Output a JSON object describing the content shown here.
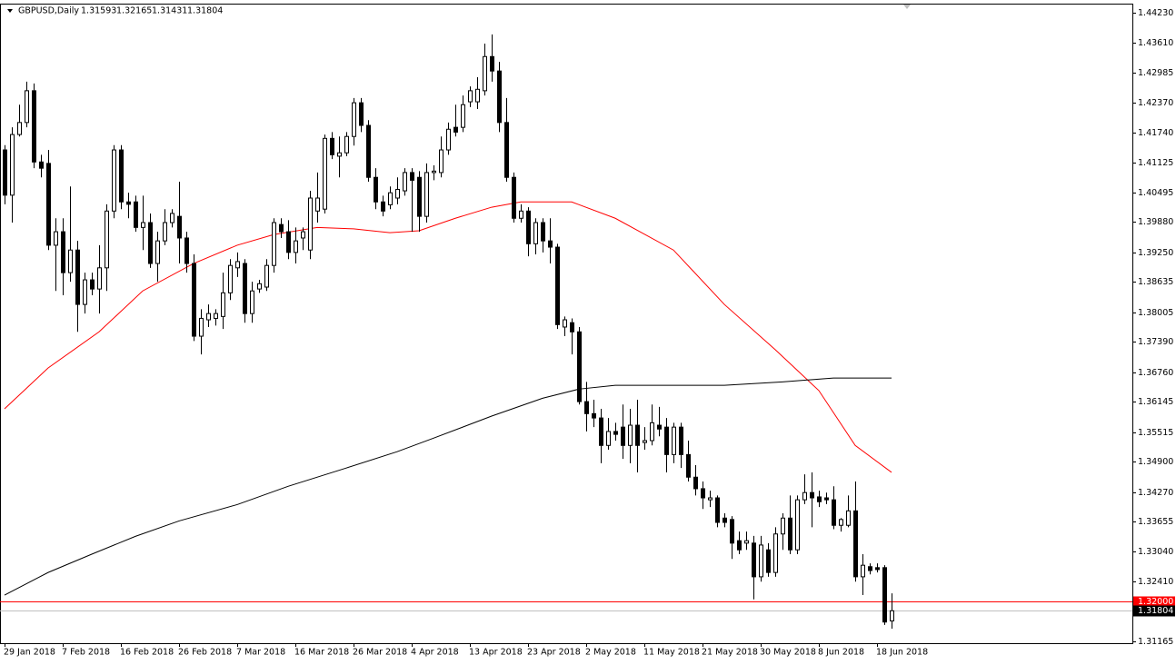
{
  "chart_data": {
    "type": "candlestick",
    "title": "GBPUSD,Daily",
    "quote": [
      1.31593,
      1.32165,
      1.31431,
      1.31804
    ],
    "categories": [
      "29 Jan 2018",
      null,
      null,
      null,
      null,
      null,
      null,
      null,
      "7 Feb 2018",
      null,
      null,
      null,
      null,
      null,
      null,
      null,
      "16 Feb 2018",
      null,
      null,
      null,
      null,
      null,
      null,
      null,
      "26 Feb 2018",
      null,
      null,
      null,
      null,
      null,
      null,
      null,
      "7 Mar 2018",
      null,
      null,
      null,
      null,
      null,
      null,
      null,
      "16 Mar 2018",
      null,
      null,
      null,
      null,
      null,
      null,
      null,
      "26 Mar 2018",
      null,
      null,
      null,
      null,
      null,
      null,
      null,
      "4 Apr 2018",
      null,
      null,
      null,
      null,
      null,
      null,
      null,
      "13 Apr 2018",
      null,
      null,
      null,
      null,
      null,
      null,
      null,
      "23 Apr 2018",
      null,
      null,
      null,
      null,
      null,
      null,
      null,
      "2 May 2018",
      null,
      null,
      null,
      null,
      null,
      null,
      null,
      "11 May 2018",
      null,
      null,
      null,
      null,
      null,
      null,
      null,
      "21 May 2018",
      null,
      null,
      null,
      null,
      null,
      null,
      null,
      "30 May 2018",
      null,
      null,
      null,
      null,
      null,
      null,
      null,
      "8 Jun 2018",
      null,
      null,
      null,
      null,
      null,
      null,
      null,
      "18 Jun 2018",
      null,
      null
    ],
    "open": [
      1.4138,
      1.4044,
      1.417,
      1.4195,
      1.4261,
      1.4113,
      1.411,
      1.394,
      1.3968,
      1.3883,
      1.393,
      1.3817,
      1.3868,
      1.3849,
      1.3893,
      1.4011,
      1.4138,
      1.403,
      1.403,
      1.3977,
      1.3987,
      1.3902,
      1.3949,
      1.3987,
      1.4,
      1.3955,
      1.3902,
      1.3751,
      1.3785,
      1.3788,
      1.3792,
      1.3841,
      1.3893,
      1.3902,
      1.3798,
      1.3849,
      1.3853,
      1.3898,
      1.3983,
      1.3968,
      1.3925,
      1.3955,
      1.393,
      1.4011,
      1.4015,
      1.4162,
      1.4125,
      1.4132,
      1.4166,
      1.4236,
      1.4189,
      1.4081,
      1.403,
      1.4024,
      1.4038,
      1.4053,
      1.4091,
      1.4081,
      1.4,
      1.4091,
      1.4091,
      1.4138,
      1.4185,
      1.4185,
      1.4238,
      1.4238,
      1.4261,
      1.4332,
      1.4302,
      1.4195,
      1.4081,
      1.3996,
      1.4011,
      1.3943,
      1.3987,
      1.3949,
      1.3936,
      1.377,
      1.3779,
      1.376,
      1.3615,
      1.359,
      1.3581,
      1.3524,
      1.3553,
      1.3562,
      1.3524,
      1.3566,
      1.353,
      1.3534,
      1.3566,
      1.3562,
      1.3505,
      1.3562,
      1.3505,
      1.3458,
      1.3434,
      1.3411,
      1.3415,
      1.3373,
      1.337,
      1.3326,
      1.3321,
      1.3321,
      1.3251,
      1.3307,
      1.326,
      1.334,
      1.3373,
      1.3307,
      1.3411,
      1.3426,
      1.3417,
      1.3415,
      1.3411,
      1.3358,
      1.3358,
      1.3388,
      1.3251,
      1.3272,
      1.327,
      1.327,
      1.31593
    ],
    "high": [
      1.4148,
      1.4185,
      1.4232,
      1.428,
      1.4276,
      1.4128,
      1.4138,
      1.3996,
      1.3996,
      1.4062,
      1.3949,
      1.3883,
      1.3883,
      1.394,
      1.4025,
      1.4148,
      1.4148,
      1.4049,
      1.4043,
      1.4043,
      1.4006,
      1.3968,
      1.4015,
      1.4015,
      1.4072,
      1.3968,
      1.3921,
      1.3807,
      1.3817,
      1.3807,
      1.3883,
      1.3911,
      1.3925,
      1.3911,
      1.3864,
      1.3868,
      1.3911,
      1.3996,
      1.3996,
      1.3992,
      1.3977,
      1.3977,
      1.4053,
      1.4091,
      1.417,
      1.4175,
      1.4166,
      1.4175,
      1.4246,
      1.4246,
      1.42,
      1.41,
      1.4043,
      1.4062,
      1.4081,
      1.41,
      1.41,
      1.4094,
      1.411,
      1.4106,
      1.4166,
      1.4195,
      1.4232,
      1.4251,
      1.427,
      1.4289,
      1.4359,
      1.4378,
      1.4321,
      1.4246,
      1.4091,
      1.4025,
      1.4019,
      1.3996,
      1.3996,
      1.3996,
      1.3943,
      1.3792,
      1.3788,
      1.377,
      1.3656,
      1.3619,
      1.36,
      1.3581,
      1.3571,
      1.3609,
      1.36,
      1.3619,
      1.3562,
      1.3609,
      1.3604,
      1.3581,
      1.3571,
      1.3571,
      1.3534,
      1.3483,
      1.3449,
      1.343,
      1.342,
      1.3383,
      1.3377,
      1.3345,
      1.3345,
      1.3336,
      1.3336,
      1.3321,
      1.3354,
      1.3383,
      1.342,
      1.342,
      1.3464,
      1.3468,
      1.343,
      1.3426,
      1.3439,
      1.3373,
      1.342,
      1.3449,
      1.3298,
      1.3279,
      1.3279,
      1.3275,
      1.32165
    ],
    "low": [
      1.4025,
      1.3987,
      1.4166,
      1.4185,
      1.41,
      1.4081,
      1.393,
      1.3845,
      1.3836,
      1.3864,
      1.376,
      1.3798,
      1.3836,
      1.3798,
      1.3845,
      1.3996,
      1.4015,
      1.3996,
      1.3968,
      1.393,
      1.3893,
      1.3864,
      1.394,
      1.3977,
      1.3902,
      1.3883,
      1.3741,
      1.3713,
      1.377,
      1.3773,
      1.3766,
      1.3826,
      1.3874,
      1.3779,
      1.3779,
      1.3841,
      1.3845,
      1.3883,
      1.3955,
      1.3911,
      1.3902,
      1.393,
      1.3911,
      1.3987,
      1.4006,
      1.4119,
      1.4081,
      1.4125,
      1.4147,
      1.4175,
      1.4072,
      1.4015,
      1.4,
      1.4015,
      1.4025,
      1.4043,
      1.3968,
      1.3968,
      1.3987,
      1.4075,
      1.4081,
      1.4128,
      1.4166,
      1.4175,
      1.4227,
      1.4223,
      1.4251,
      1.428,
      1.4175,
      1.4072,
      1.3987,
      1.3987,
      1.3917,
      1.3921,
      1.3925,
      1.3902,
      1.3766,
      1.3751,
      1.3713,
      1.3609,
      1.3553,
      1.3562,
      1.3487,
      1.3515,
      1.3534,
      1.3496,
      1.3487,
      1.3468,
      1.3515,
      1.3524,
      1.3543,
      1.3468,
      1.3487,
      1.3477,
      1.3449,
      1.342,
      1.3392,
      1.3396,
      1.3354,
      1.3354,
      1.3288,
      1.3298,
      1.3307,
      1.3204,
      1.3241,
      1.3251,
      1.3251,
      1.3307,
      1.3298,
      1.3298,
      1.3402,
      1.3354,
      1.3396,
      1.3402,
      1.335,
      1.3345,
      1.3354,
      1.3241,
      1.3213,
      1.3256,
      1.326,
      1.3151,
      1.31431
    ],
    "close": [
      1.4044,
      1.417,
      1.4195,
      1.4261,
      1.4113,
      1.41,
      1.394,
      1.3968,
      1.3883,
      1.393,
      1.3817,
      1.3868,
      1.3849,
      1.3893,
      1.4011,
      1.4138,
      1.403,
      1.4025,
      1.3977,
      1.3987,
      1.3902,
      1.3949,
      1.3987,
      1.4006,
      1.3955,
      1.3902,
      1.3751,
      1.3788,
      1.3798,
      1.3798,
      1.3841,
      1.3898,
      1.3906,
      1.3798,
      1.3845,
      1.386,
      1.3898,
      1.3987,
      1.3968,
      1.3925,
      1.3949,
      1.3968,
      1.4038,
      1.4038,
      1.4162,
      1.4128,
      1.4132,
      1.4166,
      1.4236,
      1.4189,
      1.4081,
      1.403,
      1.4011,
      1.4049,
      1.4056,
      1.4091,
      1.4075,
      1.4,
      1.4091,
      1.4094,
      1.4138,
      1.4181,
      1.4175,
      1.4232,
      1.4261,
      1.4264,
      1.4332,
      1.4302,
      1.4195,
      1.4081,
      1.3996,
      1.4011,
      1.3943,
      1.3987,
      1.3949,
      1.3936,
      1.3775,
      1.3785,
      1.376,
      1.3615,
      1.359,
      1.3581,
      1.3524,
      1.3553,
      1.3547,
      1.3524,
      1.3566,
      1.3524,
      1.3534,
      1.3571,
      1.3558,
      1.3505,
      1.3562,
      1.3505,
      1.3458,
      1.3434,
      1.3415,
      1.3415,
      1.3364,
      1.3364,
      1.3321,
      1.3307,
      1.3326,
      1.3251,
      1.3317,
      1.326,
      1.334,
      1.3373,
      1.3307,
      1.3411,
      1.3426,
      1.3415,
      1.3407,
      1.3411,
      1.3358,
      1.337,
      1.3388,
      1.3251,
      1.3275,
      1.3264,
      1.3266,
      1.3157,
      1.31804
    ],
    "lines": [
      {
        "color": "#ff0000",
        "x": [
          0,
          6,
          13,
          19,
          26,
          32,
          37,
          43,
          48,
          53,
          57,
          62,
          67,
          71,
          78,
          84,
          92,
          99,
          106,
          112,
          117,
          122
        ],
        "values": [
          1.36,
          1.3685,
          1.376,
          1.3845,
          1.3902,
          1.394,
          1.3962,
          1.3977,
          1.3974,
          1.3966,
          1.397,
          1.3996,
          1.4019,
          1.403,
          1.403,
          1.3996,
          1.393,
          1.3817,
          1.3723,
          1.3638,
          1.3524,
          1.3468
        ]
      },
      {
        "color": "#000000",
        "x": [
          0,
          6,
          12,
          18,
          24,
          32,
          39,
          47,
          54,
          59,
          67,
          74,
          79,
          84,
          92,
          99,
          107,
          114,
          122
        ],
        "values": [
          1.3213,
          1.326,
          1.3298,
          1.3335,
          1.3367,
          1.3401,
          1.3439,
          1.3477,
          1.3511,
          1.3539,
          1.3585,
          1.3622,
          1.3641,
          1.3649,
          1.3649,
          1.3649,
          1.3656,
          1.3664,
          1.3664
        ]
      }
    ],
    "levels": [
      {
        "value": 1.32,
        "label": "1.32000",
        "color": "#ff0000"
      },
      {
        "value": 1.31804,
        "color": "#c0c0c0"
      }
    ],
    "ylim": [
      1.3113,
      1.4442
    ],
    "yticks": [
      {
        "value": 1.4423,
        "label": "1.44230"
      },
      {
        "value": 1.4361,
        "label": "1.43610"
      },
      1.42985,
      {
        "value": 1.4237,
        "label": "1.42370"
      },
      {
        "value": 1.4174,
        "label": "1.41740"
      },
      1.41125,
      1.40495,
      {
        "value": 1.3988,
        "label": "1.39880"
      },
      {
        "value": 1.3925,
        "label": "1.39250"
      },
      1.38635,
      1.38005,
      {
        "value": 1.3739,
        "label": "1.37390"
      },
      {
        "value": 1.3676,
        "label": "1.36760"
      },
      1.36145,
      1.35515,
      {
        "value": 1.349,
        "label": "1.34900"
      },
      {
        "value": 1.3427,
        "label": "1.34270"
      },
      1.33655,
      {
        "value": 1.3304,
        "label": "1.33040"
      },
      {
        "value": 1.3241,
        "label": "1.32410"
      },
      1.31165
    ]
  }
}
